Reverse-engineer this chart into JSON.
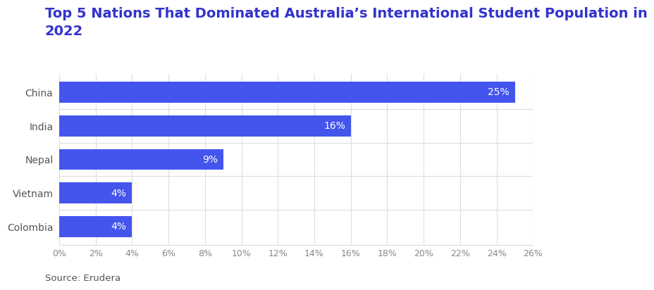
{
  "title": "Top 5 Nations That Dominated Australia’s International Student Population in\n2022",
  "categories": [
    "Colombia",
    "Vietnam",
    "Nepal",
    "India",
    "China"
  ],
  "values": [
    4,
    4,
    9,
    16,
    25
  ],
  "bar_color": "#4455EE",
  "label_color": "#ffffff",
  "title_color": "#3333CC",
  "source_text": "Source: Erudera",
  "xlim": [
    0,
    26
  ],
  "xtick_step": 2,
  "background_color": "#ffffff",
  "grid_color": "#dddddd",
  "title_fontsize": 14,
  "label_fontsize": 10,
  "tick_fontsize": 9,
  "source_fontsize": 9.5,
  "bar_height": 0.62
}
